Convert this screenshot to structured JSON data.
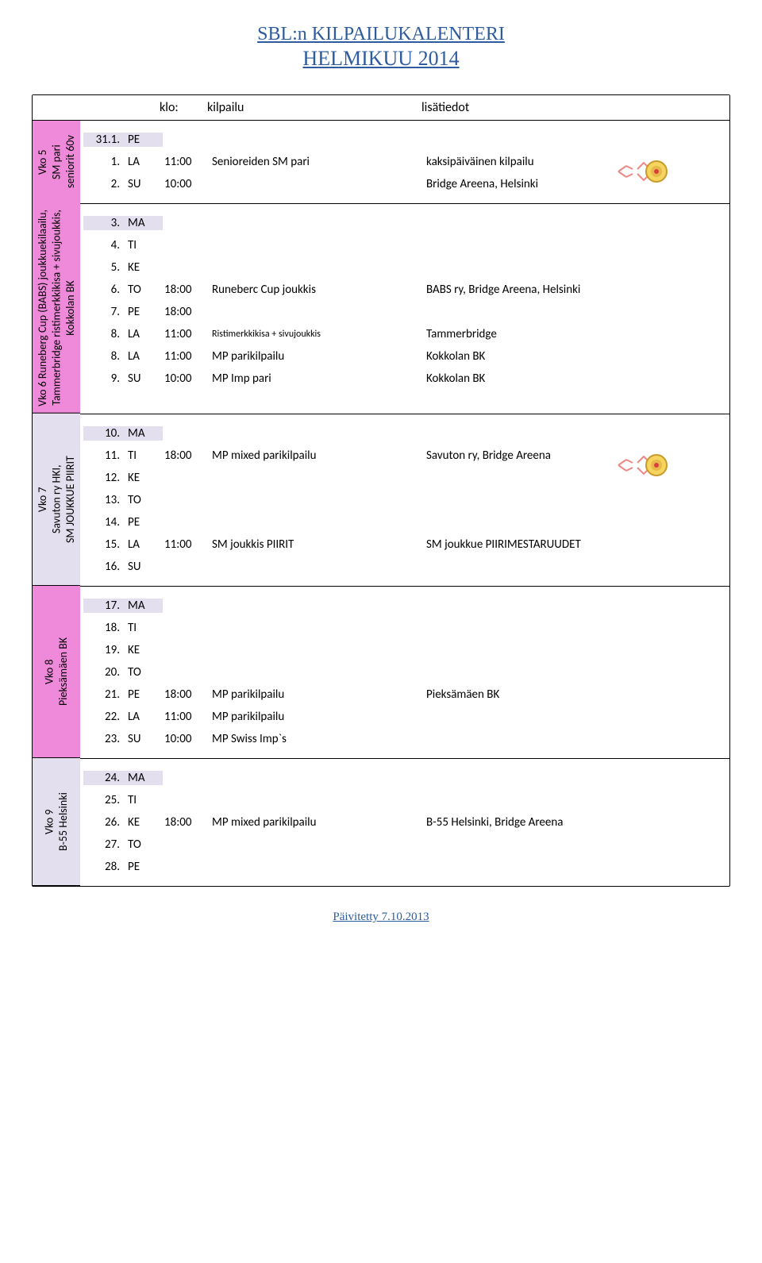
{
  "title": "SBL:n KILPAILUKALENTERI",
  "subtitle": "HELMIKUU 2014",
  "header": {
    "c3": "klo:",
    "c4": "kilpailu",
    "c5": "lisätiedot"
  },
  "footer": "Päivitetty 7.10.2013",
  "colors": {
    "pink": "#ef8ada",
    "lavender": "#e3dfef",
    "title": "#2e5c9e",
    "border": "#000000",
    "background": "#ffffff"
  },
  "weeks": [
    {
      "label": "Vko 5\nSM pari\nseniorit 60v",
      "label_bg": "pink",
      "show_medal": true,
      "rows": [
        {
          "n": "31.1.",
          "d": "PE",
          "t": "",
          "e": "",
          "x": "",
          "firstday": true
        },
        {
          "n": "1.",
          "d": "LA",
          "t": "11:00",
          "e": "Senioreiden SM pari",
          "x": "kaksipäiväinen kilpailu"
        },
        {
          "n": "2.",
          "d": "SU",
          "t": "10:00",
          "e": "",
          "x": "Bridge Areena, Helsinki"
        }
      ]
    },
    {
      "label": "Vko 6 Runeberg Cup (BABS) joukkuekilaailu,\nTammerbridge ristimerkkikisa + sivujoukkis,\nKokkolan BK",
      "label_bg": "pink",
      "show_medal": false,
      "rows": [
        {
          "n": "3.",
          "d": "MA",
          "t": "",
          "e": "",
          "x": "",
          "firstday": true
        },
        {
          "n": "4.",
          "d": "TI",
          "t": "",
          "e": "",
          "x": ""
        },
        {
          "n": "5.",
          "d": "KE",
          "t": "",
          "e": "",
          "x": ""
        },
        {
          "n": "6.",
          "d": "TO",
          "t": "18:00",
          "e": "Runeberc Cup joukkis",
          "x": "BABS ry, Bridge Areena, Helsinki"
        },
        {
          "n": "7.",
          "d": "PE",
          "t": "18:00",
          "e": "",
          "x": ""
        },
        {
          "n": "8.",
          "d": "LA",
          "t": "11:00",
          "e": "Ristimerkkikisa + sivujoukkis",
          "x": "Tammerbridge",
          "small_event": true
        },
        {
          "n": "8.",
          "d": "LA",
          "t": "11:00",
          "e": "MP parikilpailu",
          "x": "Kokkolan BK"
        },
        {
          "n": "9.",
          "d": "SU",
          "t": "10:00",
          "e": "MP Imp pari",
          "x": "Kokkolan BK"
        }
      ]
    },
    {
      "label": "Vko 7\nSavuton ry HKI,\nSM JOUKKUE PIIRIT",
      "label_bg": "lav",
      "show_medal": true,
      "rows": [
        {
          "n": "10.",
          "d": "MA",
          "t": "",
          "e": "",
          "x": "",
          "firstday": true
        },
        {
          "n": "11.",
          "d": "TI",
          "t": "18:00",
          "e": "MP mixed parikilpailu",
          "x": "Savuton ry, Bridge Areena"
        },
        {
          "n": "12.",
          "d": "KE",
          "t": "",
          "e": "",
          "x": ""
        },
        {
          "n": "13.",
          "d": "TO",
          "t": "",
          "e": "",
          "x": ""
        },
        {
          "n": "14.",
          "d": "PE",
          "t": "",
          "e": "",
          "x": ""
        },
        {
          "n": "15.",
          "d": "LA",
          "t": "11:00",
          "e": "SM joukkis PIIRIT",
          "x": "SM joukkue PIIRIMESTARUUDET"
        },
        {
          "n": "16.",
          "d": "SU",
          "t": "",
          "e": "",
          "x": ""
        }
      ]
    },
    {
      "label": "Vko 8\nPieksämäen BK",
      "label_bg": "pink",
      "show_medal": false,
      "rows": [
        {
          "n": "17.",
          "d": "MA",
          "t": "",
          "e": "",
          "x": "",
          "firstday": true
        },
        {
          "n": "18.",
          "d": "TI",
          "t": "",
          "e": "",
          "x": ""
        },
        {
          "n": "19.",
          "d": "KE",
          "t": "",
          "e": "",
          "x": ""
        },
        {
          "n": "20.",
          "d": "TO",
          "t": "",
          "e": "",
          "x": ""
        },
        {
          "n": "21.",
          "d": "PE",
          "t": "18:00",
          "e": "MP parikilpailu",
          "x": "Pieksämäen BK"
        },
        {
          "n": "22.",
          "d": "LA",
          "t": "11:00",
          "e": "MP parikilpailu",
          "x": ""
        },
        {
          "n": "23.",
          "d": "SU",
          "t": "10:00",
          "e": "MP Swiss Imp`s",
          "x": ""
        }
      ]
    },
    {
      "label": "Vko 9\nB-55 Helsinki",
      "label_bg": "lav",
      "show_medal": false,
      "rows": [
        {
          "n": "24.",
          "d": "MA",
          "t": "",
          "e": "",
          "x": "",
          "firstday": true
        },
        {
          "n": "25.",
          "d": "TI",
          "t": "",
          "e": "",
          "x": ""
        },
        {
          "n": "26.",
          "d": "KE",
          "t": "18:00",
          "e": "MP mixed parikilpailu",
          "x": "B-55 Helsinki, Bridge Areena"
        },
        {
          "n": "27.",
          "d": "TO",
          "t": "",
          "e": "",
          "x": ""
        },
        {
          "n": "28.",
          "d": "PE",
          "t": "",
          "e": "",
          "x": ""
        }
      ]
    }
  ]
}
